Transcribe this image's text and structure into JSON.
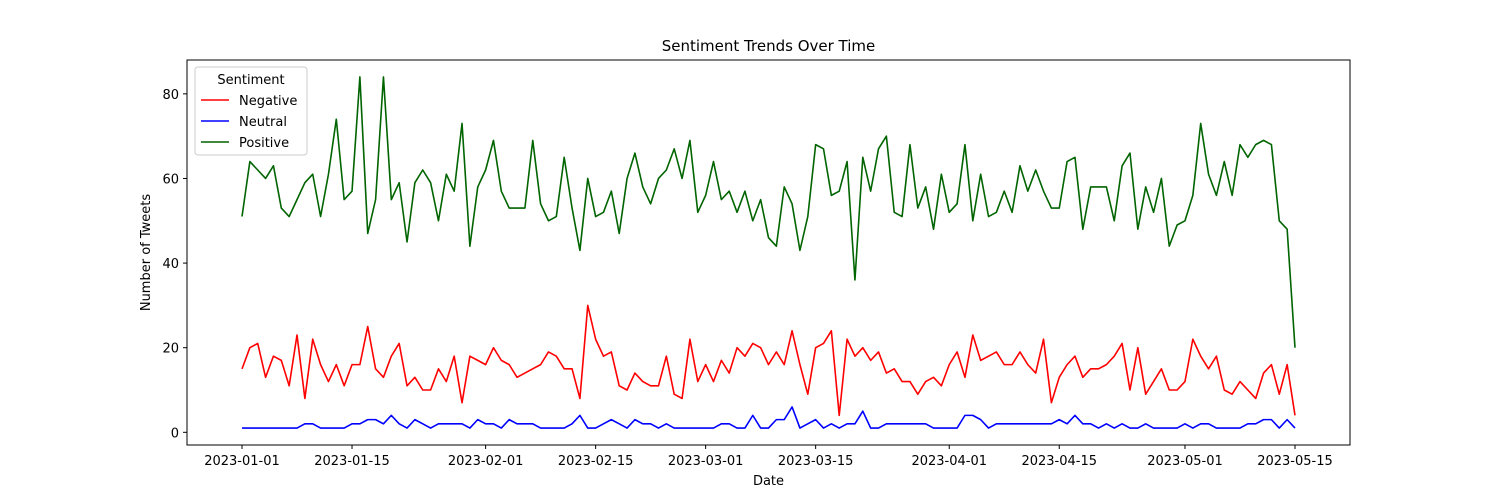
{
  "chart_data": {
    "type": "line",
    "title": "Sentiment Trends Over Time",
    "xlabel": "Date",
    "ylabel": "Number of Tweets",
    "x_start": "2023-01-01",
    "x_end": "2023-05-15",
    "xlim": [
      "2022-12-25",
      "2023-05-22"
    ],
    "ylim": [
      -3,
      88
    ],
    "x_ticks": [
      "2023-01-01",
      "2023-01-15",
      "2023-02-01",
      "2023-02-15",
      "2023-03-01",
      "2023-03-15",
      "2023-04-01",
      "2023-04-15",
      "2023-05-01",
      "2023-05-15"
    ],
    "y_ticks": [
      0,
      20,
      40,
      60,
      80
    ],
    "legend": {
      "title": "Sentiment",
      "position": "top-left"
    },
    "series": [
      {
        "name": "Negative",
        "color": "#ff0000",
        "values": [
          15,
          20,
          21,
          13,
          18,
          17,
          11,
          23,
          8,
          22,
          16,
          12,
          16,
          11,
          16,
          16,
          25,
          15,
          13,
          18,
          21,
          11,
          13,
          10,
          10,
          15,
          12,
          18,
          7,
          18,
          17,
          16,
          20,
          17,
          16,
          13,
          14,
          15,
          16,
          19,
          18,
          15,
          15,
          8,
          30,
          22,
          18,
          19,
          11,
          10,
          14,
          12,
          11,
          11,
          18,
          9,
          8,
          22,
          12,
          16,
          12,
          17,
          14,
          20,
          18,
          21,
          20,
          16,
          19,
          16,
          24,
          16,
          9,
          20,
          21,
          24,
          4,
          22,
          18,
          20,
          17,
          19,
          14,
          15,
          12,
          12,
          9,
          12,
          13,
          11,
          16,
          19,
          13,
          23,
          17,
          18,
          19,
          16,
          16,
          19,
          16,
          14,
          22,
          7,
          13,
          16,
          18,
          13,
          15,
          15,
          16,
          18,
          21,
          10,
          20,
          9,
          12,
          15,
          10,
          10,
          12,
          22,
          18,
          15,
          18,
          10,
          9,
          12,
          10,
          8,
          14,
          16,
          9,
          16,
          4
        ]
      },
      {
        "name": "Neutral",
        "color": "#0000ff",
        "values": [
          1,
          1,
          1,
          1,
          1,
          1,
          1,
          1,
          2,
          2,
          1,
          1,
          1,
          1,
          2,
          2,
          3,
          3,
          2,
          4,
          2,
          1,
          3,
          2,
          1,
          2,
          2,
          2,
          2,
          1,
          3,
          2,
          2,
          1,
          3,
          2,
          2,
          2,
          1,
          1,
          1,
          1,
          2,
          4,
          1,
          1,
          2,
          3,
          2,
          1,
          3,
          2,
          2,
          1,
          2,
          1,
          1,
          1,
          1,
          1,
          1,
          2,
          2,
          1,
          1,
          4,
          1,
          1,
          3,
          3,
          6,
          1,
          2,
          3,
          1,
          2,
          1,
          2,
          2,
          5,
          1,
          1,
          2,
          2,
          2,
          2,
          2,
          2,
          1,
          1,
          1,
          1,
          4,
          4,
          3,
          1,
          2,
          2,
          2,
          2,
          2,
          2,
          2,
          2,
          3,
          2,
          4,
          2,
          2,
          1,
          2,
          1,
          2,
          1,
          1,
          2,
          1,
          1,
          1,
          1,
          2,
          1,
          2,
          2,
          1,
          1,
          1,
          1,
          2,
          2,
          3,
          3,
          1,
          3,
          1
        ]
      },
      {
        "name": "Positive",
        "color": "#006400",
        "values": [
          51,
          64,
          62,
          60,
          63,
          53,
          51,
          55,
          59,
          61,
          51,
          61,
          74,
          55,
          57,
          84,
          47,
          55,
          84,
          55,
          59,
          45,
          59,
          62,
          59,
          50,
          61,
          57,
          73,
          44,
          58,
          62,
          69,
          57,
          53,
          53,
          53,
          69,
          54,
          50,
          51,
          65,
          53,
          43,
          60,
          51,
          52,
          57,
          47,
          60,
          66,
          58,
          54,
          60,
          62,
          67,
          60,
          69,
          52,
          56,
          64,
          55,
          57,
          52,
          57,
          50,
          55,
          46,
          44,
          58,
          54,
          43,
          51,
          68,
          67,
          56,
          57,
          64,
          36,
          65,
          57,
          67,
          70,
          52,
          51,
          68,
          53,
          58,
          48,
          61,
          52,
          54,
          68,
          50,
          61,
          51,
          52,
          57,
          52,
          63,
          57,
          62,
          57,
          53,
          53,
          64,
          65,
          48,
          58,
          58,
          58,
          50,
          63,
          66,
          48,
          58,
          52,
          60,
          44,
          49,
          50,
          56,
          73,
          61,
          56,
          64,
          56,
          68,
          65,
          68,
          69,
          68,
          50,
          48,
          20
        ]
      }
    ]
  }
}
